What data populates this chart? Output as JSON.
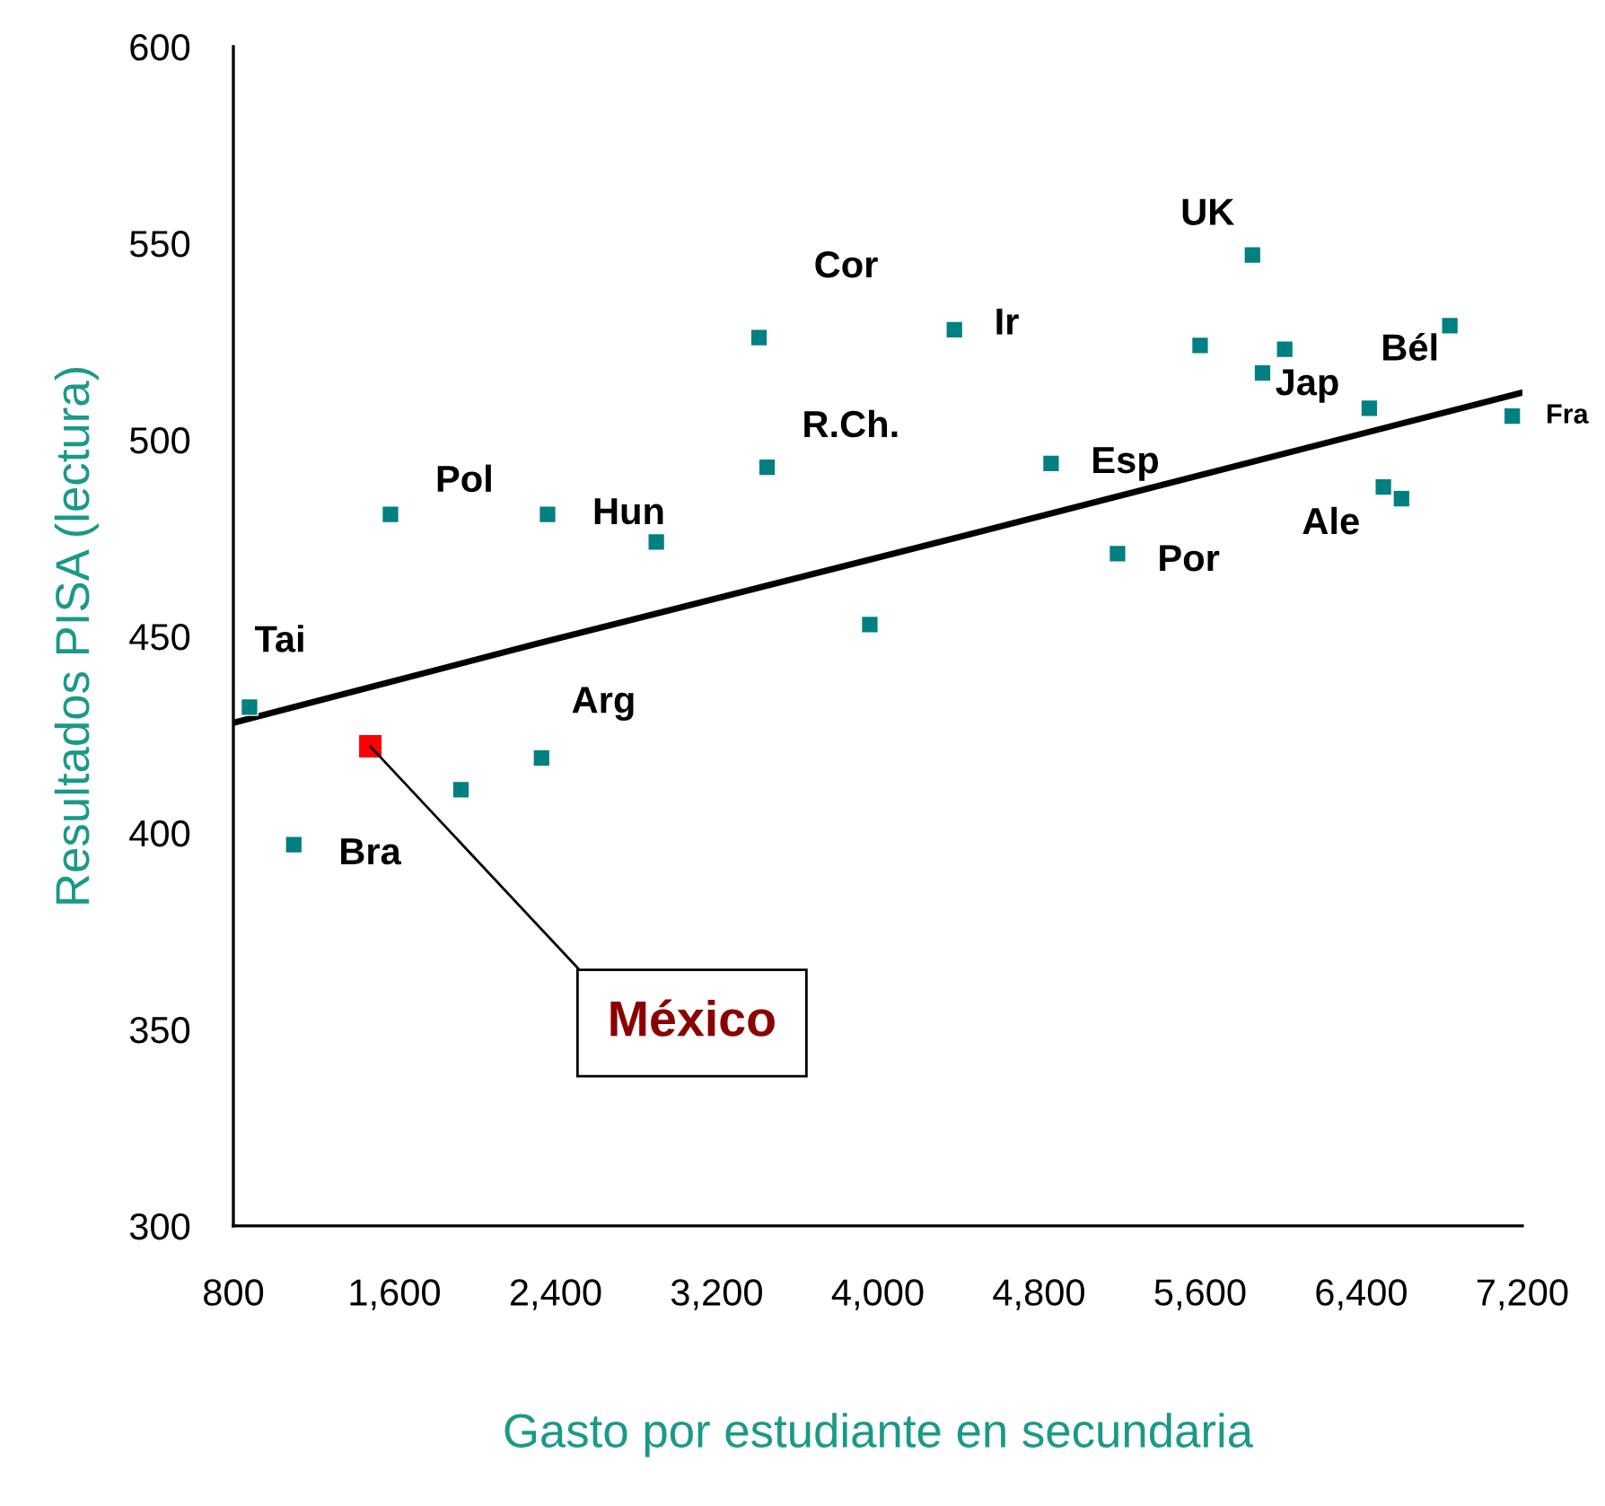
{
  "chart_data": {
    "type": "scatter",
    "xlabel": "Gasto por estudiante en secundaria",
    "ylabel": "Resultados PISA (lectura)",
    "xlim": [
      800,
      7200
    ],
    "xticks": [
      800,
      {
        "value": 1600,
        "label": "1,600"
      },
      {
        "value": 2400,
        "label": "2,400"
      },
      {
        "value": 3200,
        "label": "3,200"
      },
      {
        "value": 4000,
        "label": "4,000"
      },
      {
        "value": 4800,
        "label": "4,800"
      },
      {
        "value": 5600,
        "label": "5,600"
      },
      {
        "value": 6400,
        "label": "6,400"
      },
      {
        "value": 7200,
        "label": "7,200"
      }
    ],
    "ylim": [
      300,
      600
    ],
    "yticks": [
      300,
      350,
      400,
      450,
      500,
      550,
      600
    ],
    "marker": "square",
    "grid": false,
    "series": [
      {
        "color": "#008080",
        "x": [
          880,
          1100,
          1930,
          2330,
          1580,
          2360,
          2900,
          3410,
          3450,
          3960,
          4380,
          4860,
          5190,
          5600,
          5860,
          5910,
          6020,
          6440,
          6510,
          6600,
          6840,
          7150
        ],
        "values": [
          432,
          397,
          411,
          419,
          481,
          481,
          474,
          526,
          493,
          453,
          528,
          494,
          471,
          524,
          547,
          517,
          523,
          508,
          488,
          485,
          529,
          506
        ]
      },
      {
        "color": "#ff0000",
        "x": [
          1480
        ],
        "values": [
          422
        ]
      },
      {
        "type": "line",
        "color": "#000000",
        "marker": "none",
        "x": [
          800,
          2300,
          4460,
          7200
        ],
        "values": [
          428,
          448,
          476,
          512
        ]
      }
    ],
    "annotations": [
      {
        "text": "Tai",
        "x": 880,
        "y": 432
      },
      {
        "text": "Bra",
        "x": 1100,
        "y": 397
      },
      {
        "text": "Arg",
        "x": 2330,
        "y": 419
      },
      {
        "text": "Pol",
        "x": 1580,
        "y": 481
      },
      {
        "text": "Hun",
        "x": 2360,
        "y": 481
      },
      {
        "text": "Cor",
        "x": 3410,
        "y": 526
      },
      {
        "text": "R.Ch.",
        "x": 3450,
        "y": 493
      },
      {
        "text": "Ir",
        "x": 4380,
        "y": 528
      },
      {
        "text": "Esp",
        "x": 4860,
        "y": 494
      },
      {
        "text": "Por",
        "x": 5190,
        "y": 471
      },
      {
        "text": "UK",
        "x": 5860,
        "y": 547
      },
      {
        "text": "Jap",
        "x": 5910,
        "y": 517
      },
      {
        "text": "Bél",
        "x": 6840,
        "y": 529
      },
      {
        "text": "Ale",
        "x": 6510,
        "y": 488
      },
      {
        "text": "Fra",
        "x": 7150,
        "y": 506
      },
      {
        "text": "México",
        "x": 1480,
        "y": 422
      }
    ]
  }
}
